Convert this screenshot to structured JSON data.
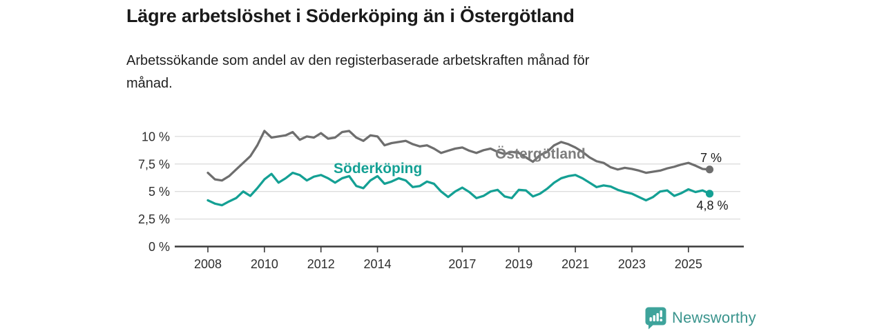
{
  "header": {
    "title": "Lägre arbetslöshet i Söderköping än i Östergötland",
    "subtitle_lines": [
      "Arbetssökande som andel av den registerbaserade arbetskraften månad för",
      "månad."
    ]
  },
  "footer": {
    "brand": "Newsworthy",
    "logo_color": "#3ea39b",
    "text_color": "#3a948d"
  },
  "chart_data": {
    "type": "line",
    "title": "Lägre arbetslöshet i Söderköping än i Östergötland",
    "subtitle": "Arbetssökande som andel av den registerbaserade arbetskraften månad för månad.",
    "xlabel": "",
    "ylabel": "",
    "unit": "%",
    "grid": "horizontal",
    "grid_color": "#dcdcdc",
    "axis_color": "#3a3a3a",
    "tick_text_color": "#2e2e2e",
    "annotation_text_color": "#1a1a1a",
    "ylim": [
      0,
      10.8
    ],
    "x_start": 2008,
    "x_step": 0.25,
    "x_end": 2025.75,
    "y_ticks": [
      {
        "value": 0,
        "label": "0 %"
      },
      {
        "value": 2.5,
        "label": "2,5 %"
      },
      {
        "value": 5,
        "label": "5 %"
      },
      {
        "value": 7.5,
        "label": "7,5 %"
      },
      {
        "value": 10,
        "label": "10 %"
      }
    ],
    "x_ticks": [
      {
        "value": 2008,
        "label": "2008"
      },
      {
        "value": 2010,
        "label": "2010"
      },
      {
        "value": 2012,
        "label": "2012"
      },
      {
        "value": 2014,
        "label": "2014"
      },
      {
        "value": 2017,
        "label": "2017"
      },
      {
        "value": 2019,
        "label": "2019"
      },
      {
        "value": 2021,
        "label": "2021"
      },
      {
        "value": 2023,
        "label": "2023"
      },
      {
        "value": 2025,
        "label": "2025"
      }
    ],
    "series": [
      {
        "name": "Östergötland",
        "color": "#6e6e6e",
        "label_color": "#7d7d7d",
        "end_label": "7 %",
        "end_value": 7.0,
        "values": [
          6.7,
          6.1,
          6.0,
          6.4,
          7.0,
          7.6,
          8.2,
          9.2,
          10.5,
          9.9,
          10.0,
          10.1,
          10.4,
          9.7,
          10.0,
          9.9,
          10.3,
          9.8,
          9.9,
          10.4,
          10.5,
          9.9,
          9.6,
          10.1,
          10.0,
          9.2,
          9.4,
          9.5,
          9.6,
          9.3,
          9.1,
          9.2,
          8.9,
          8.5,
          8.7,
          8.9,
          9.0,
          8.7,
          8.5,
          8.75,
          8.9,
          8.6,
          8.4,
          8.6,
          8.5,
          8.1,
          7.7,
          8.3,
          8.6,
          9.2,
          9.5,
          9.3,
          9.0,
          8.6,
          8.1,
          7.75,
          7.6,
          7.2,
          7.0,
          7.15,
          7.05,
          6.9,
          6.7,
          6.8,
          6.9,
          7.1,
          7.25,
          7.45,
          7.6,
          7.35,
          7.05,
          7.0
        ]
      },
      {
        "name": "Söderköping",
        "color": "#14a094",
        "label_color": "#14a094",
        "end_label": "4,8 %",
        "end_value": 4.8,
        "values": [
          4.2,
          3.9,
          3.75,
          4.1,
          4.4,
          5.0,
          4.6,
          5.3,
          6.1,
          6.6,
          5.8,
          6.2,
          6.7,
          6.5,
          6.0,
          6.35,
          6.5,
          6.2,
          5.8,
          6.2,
          6.4,
          5.5,
          5.3,
          6.0,
          6.4,
          5.7,
          5.9,
          6.2,
          6.0,
          5.4,
          5.5,
          5.9,
          5.7,
          5.0,
          4.5,
          5.0,
          5.35,
          4.95,
          4.4,
          4.6,
          5.0,
          5.15,
          4.55,
          4.4,
          5.15,
          5.1,
          4.55,
          4.8,
          5.25,
          5.8,
          6.2,
          6.4,
          6.5,
          6.2,
          5.8,
          5.4,
          5.55,
          5.45,
          5.15,
          4.95,
          4.8,
          4.5,
          4.2,
          4.5,
          5.0,
          5.1,
          4.6,
          4.85,
          5.2,
          4.95,
          5.1,
          4.8
        ]
      }
    ],
    "legend_position": "inline-labels"
  }
}
